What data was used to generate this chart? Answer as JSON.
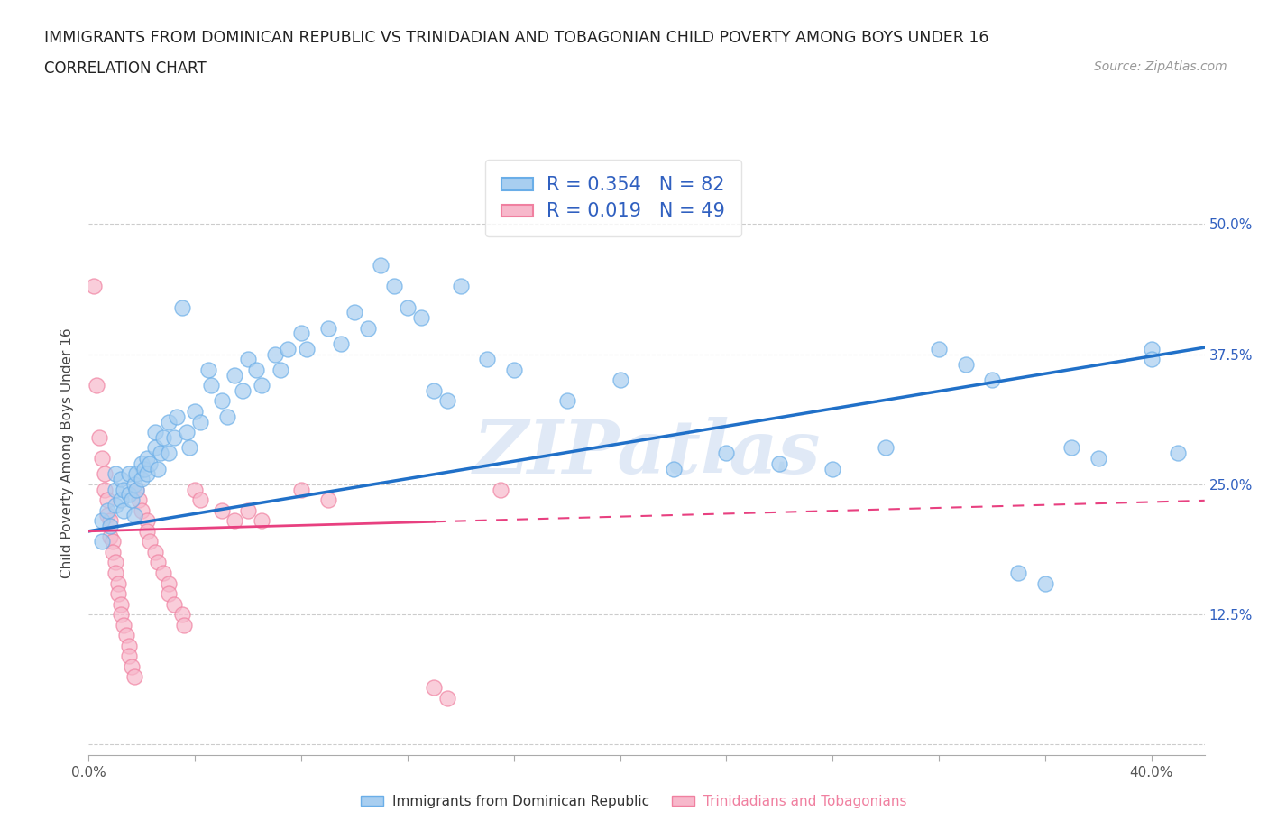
{
  "title": "IMMIGRANTS FROM DOMINICAN REPUBLIC VS TRINIDADIAN AND TOBAGONIAN CHILD POVERTY AMONG BOYS UNDER 16",
  "subtitle": "CORRELATION CHART",
  "source": "Source: ZipAtlas.com",
  "ylabel": "Child Poverty Among Boys Under 16",
  "xlim": [
    0.0,
    0.42
  ],
  "ylim": [
    -0.01,
    0.57
  ],
  "yticks": [
    0.0,
    0.125,
    0.25,
    0.375,
    0.5
  ],
  "yticklabels": [
    "",
    "12.5%",
    "25.0%",
    "37.5%",
    "50.0%"
  ],
  "xticks": [
    0.0,
    0.04,
    0.08,
    0.12,
    0.16,
    0.2,
    0.24,
    0.28,
    0.32,
    0.36,
    0.4
  ],
  "blue_color": "#a8cef0",
  "blue_edge_color": "#6aaee8",
  "pink_color": "#f7b8cb",
  "pink_edge_color": "#f080a0",
  "blue_line_color": "#2070c8",
  "pink_line_color": "#e84080",
  "tick_color": "#aaaaaa",
  "label_color": "#3060c0",
  "blue_R": 0.354,
  "blue_N": 82,
  "pink_R": 0.019,
  "pink_N": 49,
  "blue_scatter": [
    [
      0.005,
      0.195
    ],
    [
      0.005,
      0.215
    ],
    [
      0.007,
      0.225
    ],
    [
      0.008,
      0.21
    ],
    [
      0.01,
      0.26
    ],
    [
      0.01,
      0.245
    ],
    [
      0.01,
      0.23
    ],
    [
      0.012,
      0.255
    ],
    [
      0.012,
      0.235
    ],
    [
      0.013,
      0.245
    ],
    [
      0.013,
      0.225
    ],
    [
      0.015,
      0.26
    ],
    [
      0.015,
      0.24
    ],
    [
      0.016,
      0.235
    ],
    [
      0.017,
      0.25
    ],
    [
      0.017,
      0.22
    ],
    [
      0.018,
      0.26
    ],
    [
      0.018,
      0.245
    ],
    [
      0.02,
      0.27
    ],
    [
      0.02,
      0.255
    ],
    [
      0.021,
      0.265
    ],
    [
      0.022,
      0.275
    ],
    [
      0.022,
      0.26
    ],
    [
      0.023,
      0.27
    ],
    [
      0.025,
      0.3
    ],
    [
      0.025,
      0.285
    ],
    [
      0.026,
      0.265
    ],
    [
      0.027,
      0.28
    ],
    [
      0.028,
      0.295
    ],
    [
      0.03,
      0.31
    ],
    [
      0.03,
      0.28
    ],
    [
      0.032,
      0.295
    ],
    [
      0.033,
      0.315
    ],
    [
      0.035,
      0.42
    ],
    [
      0.037,
      0.3
    ],
    [
      0.038,
      0.285
    ],
    [
      0.04,
      0.32
    ],
    [
      0.042,
      0.31
    ],
    [
      0.045,
      0.36
    ],
    [
      0.046,
      0.345
    ],
    [
      0.05,
      0.33
    ],
    [
      0.052,
      0.315
    ],
    [
      0.055,
      0.355
    ],
    [
      0.058,
      0.34
    ],
    [
      0.06,
      0.37
    ],
    [
      0.063,
      0.36
    ],
    [
      0.065,
      0.345
    ],
    [
      0.07,
      0.375
    ],
    [
      0.072,
      0.36
    ],
    [
      0.075,
      0.38
    ],
    [
      0.08,
      0.395
    ],
    [
      0.082,
      0.38
    ],
    [
      0.09,
      0.4
    ],
    [
      0.095,
      0.385
    ],
    [
      0.1,
      0.415
    ],
    [
      0.105,
      0.4
    ],
    [
      0.11,
      0.46
    ],
    [
      0.115,
      0.44
    ],
    [
      0.12,
      0.42
    ],
    [
      0.125,
      0.41
    ],
    [
      0.13,
      0.34
    ],
    [
      0.135,
      0.33
    ],
    [
      0.14,
      0.44
    ],
    [
      0.15,
      0.37
    ],
    [
      0.16,
      0.36
    ],
    [
      0.18,
      0.33
    ],
    [
      0.2,
      0.35
    ],
    [
      0.22,
      0.265
    ],
    [
      0.24,
      0.28
    ],
    [
      0.26,
      0.27
    ],
    [
      0.28,
      0.265
    ],
    [
      0.3,
      0.285
    ],
    [
      0.32,
      0.38
    ],
    [
      0.33,
      0.365
    ],
    [
      0.34,
      0.35
    ],
    [
      0.35,
      0.165
    ],
    [
      0.36,
      0.155
    ],
    [
      0.37,
      0.285
    ],
    [
      0.38,
      0.275
    ],
    [
      0.4,
      0.38
    ],
    [
      0.4,
      0.37
    ],
    [
      0.41,
      0.28
    ]
  ],
  "pink_scatter": [
    [
      0.002,
      0.44
    ],
    [
      0.003,
      0.345
    ],
    [
      0.004,
      0.295
    ],
    [
      0.005,
      0.275
    ],
    [
      0.006,
      0.26
    ],
    [
      0.006,
      0.245
    ],
    [
      0.007,
      0.235
    ],
    [
      0.007,
      0.22
    ],
    [
      0.008,
      0.215
    ],
    [
      0.008,
      0.2
    ],
    [
      0.009,
      0.195
    ],
    [
      0.009,
      0.185
    ],
    [
      0.01,
      0.175
    ],
    [
      0.01,
      0.165
    ],
    [
      0.011,
      0.155
    ],
    [
      0.011,
      0.145
    ],
    [
      0.012,
      0.135
    ],
    [
      0.012,
      0.125
    ],
    [
      0.013,
      0.115
    ],
    [
      0.014,
      0.105
    ],
    [
      0.015,
      0.095
    ],
    [
      0.015,
      0.085
    ],
    [
      0.016,
      0.075
    ],
    [
      0.017,
      0.065
    ],
    [
      0.018,
      0.245
    ],
    [
      0.019,
      0.235
    ],
    [
      0.02,
      0.225
    ],
    [
      0.022,
      0.215
    ],
    [
      0.022,
      0.205
    ],
    [
      0.023,
      0.195
    ],
    [
      0.025,
      0.185
    ],
    [
      0.026,
      0.175
    ],
    [
      0.028,
      0.165
    ],
    [
      0.03,
      0.155
    ],
    [
      0.03,
      0.145
    ],
    [
      0.032,
      0.135
    ],
    [
      0.035,
      0.125
    ],
    [
      0.036,
      0.115
    ],
    [
      0.04,
      0.245
    ],
    [
      0.042,
      0.235
    ],
    [
      0.05,
      0.225
    ],
    [
      0.055,
      0.215
    ],
    [
      0.06,
      0.225
    ],
    [
      0.065,
      0.215
    ],
    [
      0.08,
      0.245
    ],
    [
      0.09,
      0.235
    ],
    [
      0.13,
      0.055
    ],
    [
      0.135,
      0.045
    ],
    [
      0.155,
      0.245
    ]
  ],
  "watermark_text": "ZIPatlas",
  "legend_blue_label": "Immigrants from Dominican Republic",
  "legend_pink_label": "Trinidadians and Tobagonians"
}
